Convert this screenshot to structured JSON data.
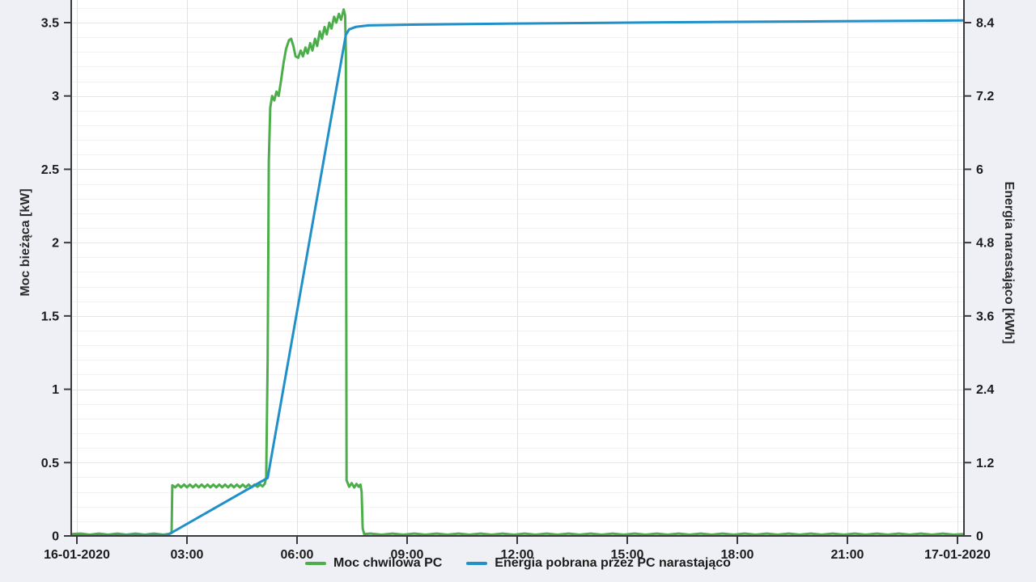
{
  "page": {
    "background": "#eef0f6",
    "plot_background": "#ffffff"
  },
  "chart_data": {
    "type": "line",
    "title": "",
    "x_axis": {
      "label": "",
      "range_hours": [
        0,
        24
      ],
      "ticks": [
        {
          "h": 0,
          "label": "16-01-2020"
        },
        {
          "h": 3,
          "label": "03:00"
        },
        {
          "h": 6,
          "label": "06:00"
        },
        {
          "h": 9,
          "label": "09:00"
        },
        {
          "h": 12,
          "label": "12:00"
        },
        {
          "h": 15,
          "label": "15:00"
        },
        {
          "h": 18,
          "label": "18:00"
        },
        {
          "h": 21,
          "label": "21:00"
        },
        {
          "h": 24,
          "label": "17-01-2020"
        }
      ]
    },
    "y_left": {
      "label": "Moc bieżąca [kW]",
      "unit": "kW",
      "max_visible": 3.65,
      "ticks": [
        {
          "v": 0,
          "label": "0"
        },
        {
          "v": 0.5,
          "label": "0.5"
        },
        {
          "v": 1,
          "label": "1"
        },
        {
          "v": 1.5,
          "label": "1.5"
        },
        {
          "v": 2,
          "label": "2"
        },
        {
          "v": 2.5,
          "label": "2.5"
        },
        {
          "v": 3,
          "label": "3"
        },
        {
          "v": 3.5,
          "label": "3.5"
        }
      ],
      "minor_grid_step": 0.1,
      "major_grid_step": 0.5
    },
    "y_right": {
      "label": "Energia narastająco [kWh]",
      "unit": "kWh",
      "max_visible": 8.76,
      "ticks": [
        {
          "v": 0,
          "label": "0"
        },
        {
          "v": 1.2,
          "label": "1.2"
        },
        {
          "v": 2.4,
          "label": "2.4"
        },
        {
          "v": 3.6,
          "label": "3.6"
        },
        {
          "v": 4.8,
          "label": "4.8"
        },
        {
          "v": 6,
          "label": "6"
        },
        {
          "v": 7.2,
          "label": "7.2"
        },
        {
          "v": 8.4,
          "label": "8.4"
        }
      ]
    },
    "grid": {
      "vertical_every_hours": 3,
      "horizontal_minor": true
    },
    "legend_position": "bottom-center",
    "series": [
      {
        "name": "Moc chwilowa PC",
        "axis": "left",
        "color": "#4cae4a",
        "points": [
          [
            -0.15,
            0.012
          ],
          [
            0.1,
            0.016
          ],
          [
            0.35,
            0.008
          ],
          [
            0.6,
            0.016
          ],
          [
            0.85,
            0.008
          ],
          [
            1.1,
            0.016
          ],
          [
            1.35,
            0.008
          ],
          [
            1.6,
            0.016
          ],
          [
            1.85,
            0.008
          ],
          [
            2.1,
            0.016
          ],
          [
            2.35,
            0.008
          ],
          [
            2.52,
            0.014
          ],
          [
            2.58,
            0.02
          ],
          [
            2.6,
            0.345
          ],
          [
            2.68,
            0.331
          ],
          [
            2.76,
            0.35
          ],
          [
            2.84,
            0.331
          ],
          [
            2.92,
            0.35
          ],
          [
            3.0,
            0.331
          ],
          [
            3.08,
            0.35
          ],
          [
            3.16,
            0.331
          ],
          [
            3.24,
            0.35
          ],
          [
            3.32,
            0.331
          ],
          [
            3.4,
            0.35
          ],
          [
            3.48,
            0.331
          ],
          [
            3.56,
            0.35
          ],
          [
            3.64,
            0.331
          ],
          [
            3.72,
            0.35
          ],
          [
            3.8,
            0.331
          ],
          [
            3.88,
            0.35
          ],
          [
            3.96,
            0.331
          ],
          [
            4.04,
            0.35
          ],
          [
            4.12,
            0.331
          ],
          [
            4.2,
            0.35
          ],
          [
            4.28,
            0.331
          ],
          [
            4.36,
            0.35
          ],
          [
            4.44,
            0.331
          ],
          [
            4.52,
            0.35
          ],
          [
            4.6,
            0.331
          ],
          [
            4.68,
            0.35
          ],
          [
            4.76,
            0.331
          ],
          [
            4.84,
            0.35
          ],
          [
            4.92,
            0.335
          ],
          [
            5.0,
            0.35
          ],
          [
            5.06,
            0.338
          ],
          [
            5.12,
            0.355
          ],
          [
            5.16,
            0.4
          ],
          [
            5.2,
            1.2
          ],
          [
            5.23,
            2.55
          ],
          [
            5.27,
            2.92
          ],
          [
            5.32,
            3.0
          ],
          [
            5.38,
            2.97
          ],
          [
            5.44,
            3.03
          ],
          [
            5.5,
            3.0
          ],
          [
            5.56,
            3.1
          ],
          [
            5.63,
            3.22
          ],
          [
            5.7,
            3.32
          ],
          [
            5.78,
            3.38
          ],
          [
            5.84,
            3.39
          ],
          [
            5.9,
            3.34
          ],
          [
            5.96,
            3.27
          ],
          [
            6.03,
            3.26
          ],
          [
            6.1,
            3.31
          ],
          [
            6.16,
            3.27
          ],
          [
            6.23,
            3.33
          ],
          [
            6.29,
            3.29
          ],
          [
            6.36,
            3.36
          ],
          [
            6.42,
            3.31
          ],
          [
            6.49,
            3.39
          ],
          [
            6.55,
            3.34
          ],
          [
            6.62,
            3.44
          ],
          [
            6.68,
            3.39
          ],
          [
            6.75,
            3.47
          ],
          [
            6.81,
            3.42
          ],
          [
            6.88,
            3.5
          ],
          [
            6.94,
            3.46
          ],
          [
            7.01,
            3.54
          ],
          [
            7.07,
            3.5
          ],
          [
            7.14,
            3.56
          ],
          [
            7.2,
            3.52
          ],
          [
            7.27,
            3.59
          ],
          [
            7.31,
            3.55
          ],
          [
            7.33,
            3.3
          ],
          [
            7.35,
            0.38
          ],
          [
            7.42,
            0.335
          ],
          [
            7.49,
            0.36
          ],
          [
            7.56,
            0.33
          ],
          [
            7.62,
            0.355
          ],
          [
            7.68,
            0.335
          ],
          [
            7.73,
            0.35
          ],
          [
            7.76,
            0.3
          ],
          [
            7.79,
            0.05
          ],
          [
            7.83,
            0.012
          ],
          [
            8.0,
            0.016
          ],
          [
            8.3,
            0.008
          ],
          [
            8.6,
            0.016
          ],
          [
            8.9,
            0.008
          ],
          [
            9.2,
            0.016
          ],
          [
            9.5,
            0.008
          ],
          [
            9.8,
            0.016
          ],
          [
            10.1,
            0.008
          ],
          [
            10.4,
            0.016
          ],
          [
            10.7,
            0.008
          ],
          [
            11.0,
            0.016
          ],
          [
            11.3,
            0.008
          ],
          [
            11.6,
            0.016
          ],
          [
            11.9,
            0.008
          ],
          [
            12.2,
            0.016
          ],
          [
            12.5,
            0.008
          ],
          [
            12.8,
            0.016
          ],
          [
            13.1,
            0.008
          ],
          [
            13.4,
            0.016
          ],
          [
            13.7,
            0.008
          ],
          [
            14.0,
            0.016
          ],
          [
            14.3,
            0.008
          ],
          [
            14.6,
            0.016
          ],
          [
            14.9,
            0.008
          ],
          [
            15.2,
            0.016
          ],
          [
            15.5,
            0.008
          ],
          [
            15.8,
            0.016
          ],
          [
            16.1,
            0.008
          ],
          [
            16.4,
            0.016
          ],
          [
            16.7,
            0.008
          ],
          [
            17.0,
            0.016
          ],
          [
            17.3,
            0.008
          ],
          [
            17.6,
            0.016
          ],
          [
            17.9,
            0.008
          ],
          [
            18.2,
            0.016
          ],
          [
            18.5,
            0.008
          ],
          [
            18.8,
            0.016
          ],
          [
            19.1,
            0.008
          ],
          [
            19.4,
            0.016
          ],
          [
            19.7,
            0.008
          ],
          [
            20.0,
            0.016
          ],
          [
            20.3,
            0.008
          ],
          [
            20.6,
            0.016
          ],
          [
            20.9,
            0.008
          ],
          [
            21.2,
            0.016
          ],
          [
            21.5,
            0.008
          ],
          [
            21.8,
            0.016
          ],
          [
            22.1,
            0.008
          ],
          [
            22.4,
            0.016
          ],
          [
            22.7,
            0.008
          ],
          [
            23.0,
            0.016
          ],
          [
            23.3,
            0.008
          ],
          [
            23.6,
            0.016
          ],
          [
            23.9,
            0.008
          ],
          [
            24.15,
            0.012
          ]
        ]
      },
      {
        "name": "Energia pobrana przez PC narastająco",
        "axis": "right",
        "color": "#2090c8",
        "points": [
          [
            -0.15,
            0.005
          ],
          [
            2.45,
            0.012
          ],
          [
            2.6,
            0.06
          ],
          [
            5.2,
            0.95
          ],
          [
            7.33,
            8.2
          ],
          [
            7.42,
            8.29
          ],
          [
            7.6,
            8.33
          ],
          [
            7.95,
            8.355
          ],
          [
            9,
            8.365
          ],
          [
            12,
            8.385
          ],
          [
            16,
            8.405
          ],
          [
            20,
            8.42
          ],
          [
            24.15,
            8.435
          ]
        ]
      }
    ]
  }
}
